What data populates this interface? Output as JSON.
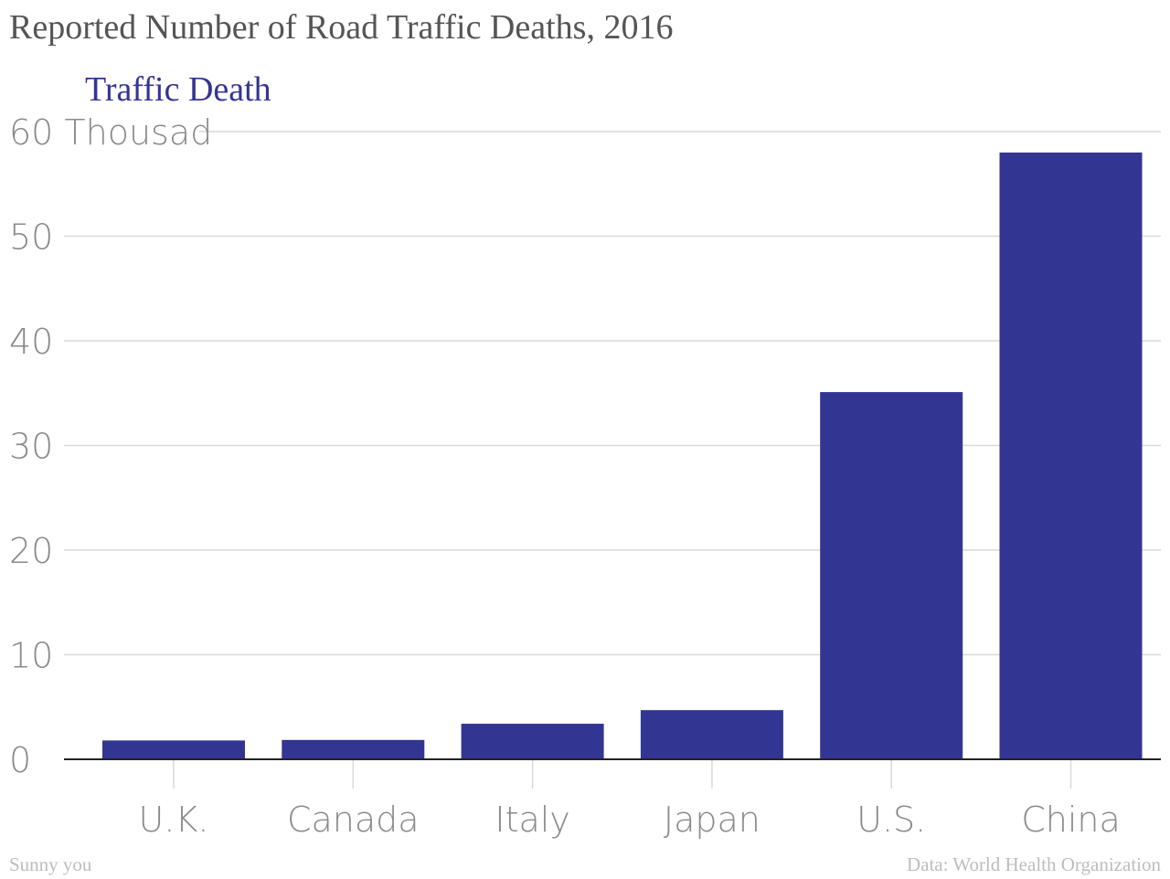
{
  "chart_data": {
    "type": "bar",
    "title": "Reported Number of Road Traffic Deaths, 2016",
    "series_label": "Traffic Death",
    "categories": [
      "U.K.",
      "Canada",
      "Italy",
      "Japan",
      "U.S.",
      "China"
    ],
    "series": [
      {
        "name": "Traffic Death",
        "values": [
          1.8,
          1.85,
          3.4,
          4.7,
          35.1,
          58.0
        ]
      }
    ],
    "y_unit_label": "Thousad",
    "yticks": [
      0,
      10,
      20,
      30,
      40,
      50,
      60
    ],
    "ylim": [
      0,
      60
    ],
    "grid": true,
    "bar_color": "#333592",
    "gridline_color": "#d9d9d9",
    "axis_color": "#222222"
  },
  "footer": {
    "author": "Sunny you",
    "source": "Data: World Health Organization"
  }
}
